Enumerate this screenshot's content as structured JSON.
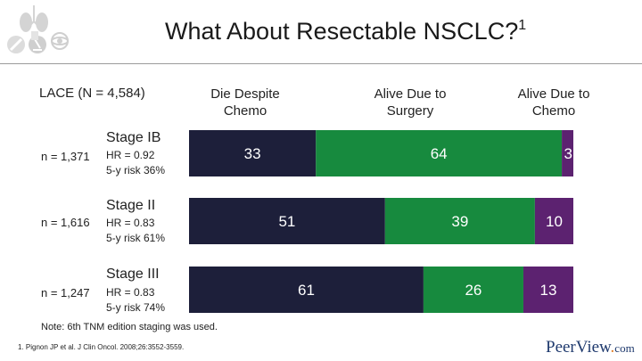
{
  "header": {
    "title": "What About Resectable NSCLC?",
    "title_superscript": "1"
  },
  "logo_icons": [
    "lungs-icon",
    "syringe-icon",
    "microscope-icon",
    "document-icon",
    "atom-icon"
  ],
  "chart_data": {
    "type": "bar",
    "orientation": "horizontal",
    "stacked": true,
    "title": "LACE (N = 4,584)",
    "series": [
      {
        "name": "Die Despite Chemo",
        "color": "#1d1f3a",
        "values": [
          33,
          51,
          61
        ]
      },
      {
        "name": "Alive Due to Surgery",
        "color": "#178a3e",
        "values": [
          64,
          39,
          26
        ]
      },
      {
        "name": "Alive Due to Chemo",
        "color": "#5c2270",
        "values": [
          3,
          10,
          13
        ]
      }
    ],
    "categories": [
      "Stage IB",
      "Stage II",
      "Stage III"
    ],
    "sample_sizes": [
      "n = 1,371",
      "n = 1,616",
      "n = 1,247"
    ],
    "hazard_ratios": [
      "HR = 0.92",
      "HR = 0.83",
      "HR = 0.83"
    ],
    "five_year_risk": [
      "5-y risk 36%",
      "5-y risk 61%",
      "5-y risk 74%"
    ],
    "xlim": [
      0,
      100
    ],
    "label_color": "#ffffff"
  },
  "footer": {
    "note": "Note: 6th TNM edition staging was used.",
    "reference": "1. Pignon JP et al. J Clin Oncol. 2008;26:3552-3559.",
    "brand_main": "PeerView",
    "brand_dot": ".",
    "brand_suffix": "com"
  }
}
